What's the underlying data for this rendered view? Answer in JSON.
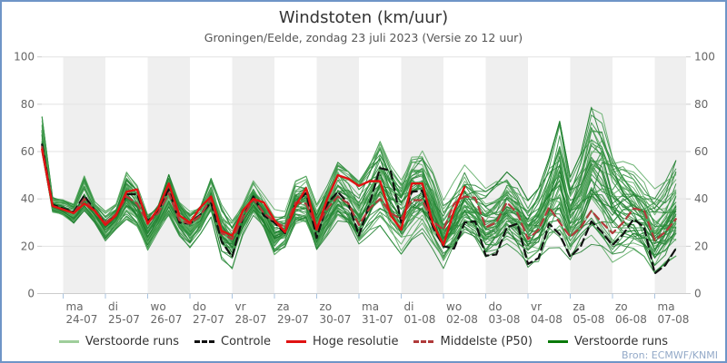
{
  "window": {
    "border_color": "#6f95c7"
  },
  "header": {
    "title": "Windstoten (km/uur)",
    "subtitle": "Groningen/Eelde, zondag 23 juli 2023 (Versie zo 12 uur)"
  },
  "source": "Bron: ECMWF/KNMI",
  "legend": {
    "items": [
      {
        "label": "Verstoorde runs",
        "color": "#9fce9b",
        "style": "solid"
      },
      {
        "label": "Controle",
        "color": "#111111",
        "style": "dashed"
      },
      {
        "label": "Hoge resolutie",
        "color": "#e01212",
        "style": "solid"
      },
      {
        "label": "Middelste (P50)",
        "color": "#b03a3a",
        "style": "dashed"
      },
      {
        "label": "Verstoorde runs",
        "color": "#0a7a0a",
        "style": "solid"
      }
    ]
  },
  "chart_data": {
    "type": "line",
    "title": "Windstoten (km/uur)",
    "subtitle": "Groningen/Eelde, zondag 23 juli 2023 (Versie zo 12 uur)",
    "ylabel": "km/uur",
    "ylim": [
      0,
      100
    ],
    "yticks": [
      0,
      20,
      40,
      60,
      80,
      100
    ],
    "x_start_label": "zo 23-07 12:00",
    "step_hours": 6,
    "points": 61,
    "xticks": [
      {
        "day": "ma",
        "date": "24-07"
      },
      {
        "day": "di",
        "date": "25-07"
      },
      {
        "day": "wo",
        "date": "26-07"
      },
      {
        "day": "do",
        "date": "27-07"
      },
      {
        "day": "vr",
        "date": "28-07"
      },
      {
        "day": "za",
        "date": "29-07"
      },
      {
        "day": "zo",
        "date": "30-07"
      },
      {
        "day": "ma",
        "date": "31-07"
      },
      {
        "day": "di",
        "date": "01-08"
      },
      {
        "day": "wo",
        "date": "02-08"
      },
      {
        "day": "do",
        "date": "03-08"
      },
      {
        "day": "vr",
        "date": "04-08"
      },
      {
        "day": "za",
        "date": "05-08"
      },
      {
        "day": "zo",
        "date": "06-08"
      },
      {
        "day": "ma",
        "date": "07-08"
      }
    ],
    "series": [
      {
        "name": "Controle",
        "color": "#111111",
        "style": "dashed",
        "values": [
          63,
          37.5,
          36,
          34.5,
          41.5,
          35,
          29.5,
          33,
          42,
          42,
          30.5,
          35,
          44,
          30,
          29.5,
          33.5,
          38.5,
          22,
          15.5,
          32,
          41,
          33,
          30,
          25.5,
          38,
          42.5,
          23.5,
          38,
          43,
          38,
          24.5,
          38,
          53,
          52,
          30,
          43,
          43.5,
          28,
          20,
          19,
          30,
          30.5,
          16,
          16.5,
          28,
          29.5,
          12.5,
          15,
          29.5,
          25,
          15.5,
          20,
          30.5,
          26,
          20.5,
          25,
          31.5,
          28,
          8.5,
          12,
          19
        ]
      },
      {
        "name": "Middelste (P50)",
        "color": "#b03a3a",
        "style": "dashed",
        "values": [
          62,
          37,
          35.5,
          34,
          40,
          34.5,
          30,
          33.5,
          41,
          38,
          30,
          34,
          42.5,
          31,
          29.5,
          33,
          40,
          25.5,
          23,
          32,
          40,
          34,
          30.5,
          28,
          38.5,
          38,
          28,
          36,
          41,
          38,
          29,
          36,
          40,
          34,
          31.5,
          39.5,
          39.5,
          30.5,
          27,
          38,
          41,
          40.5,
          28,
          30,
          38.5,
          34,
          23,
          27,
          36.5,
          30,
          24,
          28,
          35,
          30,
          25.5,
          30,
          36,
          35,
          22.5,
          26,
          31.5
        ]
      },
      {
        "name": "Hoge resolutie",
        "color": "#e01212",
        "style": "solid",
        "values": [
          61,
          37,
          35.5,
          34,
          38,
          35,
          29,
          33,
          43,
          44,
          29.5,
          36,
          46.5,
          33,
          30,
          36.5,
          41,
          26.5,
          24.5,
          35,
          40,
          38.5,
          31,
          26,
          37,
          44.5,
          27,
          40,
          50,
          48.5,
          45.5,
          47.5,
          47.5,
          33,
          27,
          46.5,
          46.5,
          29.5,
          20.5,
          35,
          45
        ]
      }
    ],
    "ensemble": {
      "name": "Verstoorde runs",
      "count": 50,
      "seed": 12,
      "colors": [
        "#2e8f3e",
        "#57a85f",
        "#1d7c2d"
      ],
      "min": [
        56,
        33,
        32,
        29,
        33,
        29,
        22,
        27,
        31,
        28,
        18,
        26,
        32,
        24,
        19,
        25,
        32,
        14,
        10,
        24,
        31,
        25,
        13,
        18,
        28,
        28,
        16,
        24,
        30,
        26,
        18,
        24,
        28,
        22,
        16,
        22,
        25,
        18,
        10,
        15,
        22,
        20,
        14,
        15,
        20,
        16,
        10,
        12,
        18,
        15,
        10,
        14,
        18,
        16,
        12,
        15,
        18,
        15,
        8,
        12,
        15
      ],
      "max": [
        75,
        41,
        40,
        38,
        50,
        39,
        35,
        38,
        52,
        46,
        34,
        38,
        52,
        40,
        35,
        37,
        49,
        38,
        32,
        38,
        48,
        42,
        36,
        35,
        48,
        50,
        38,
        46,
        56,
        52,
        48,
        55,
        65,
        55,
        50,
        60,
        62,
        52,
        40,
        48,
        55,
        50,
        45,
        48,
        52,
        48,
        40,
        45,
        58,
        74,
        50,
        60,
        80,
        78,
        67,
        60,
        55,
        50,
        45,
        48,
        57
      ]
    },
    "colors": {
      "band": "#efefef",
      "grid": "#e3e3e3",
      "axis": "#cccccc",
      "xtick": "#aac4e0",
      "label": "#666666"
    },
    "legend_position": "bottom",
    "grid": true
  }
}
